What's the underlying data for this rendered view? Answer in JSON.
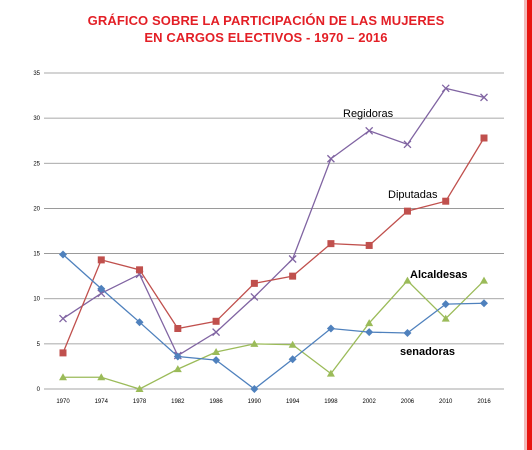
{
  "title_line1": "GRÁFICO SOBRE LA PARTICIPACIÓN DE LAS MUJERES",
  "title_line2": "EN CARGOS ELECTIVOS - 1970 – 2016",
  "chart_data": {
    "type": "line",
    "categories": [
      "1970",
      "1974",
      "1978",
      "1982",
      "1986",
      "1990",
      "1994",
      "1998",
      "2002",
      "2006",
      "2010",
      "2016"
    ],
    "ylim": [
      0,
      35
    ],
    "yticks": [
      0,
      5,
      10,
      15,
      20,
      25,
      30,
      35
    ],
    "grid": true,
    "series": [
      {
        "name": "Regidoras",
        "color": "#8064a2",
        "marker": "x",
        "values": [
          7.8,
          10.6,
          12.7,
          3.7,
          6.3,
          10.2,
          14.4,
          25.5,
          28.6,
          27.1,
          33.3,
          32.3
        ]
      },
      {
        "name": "Diputadas",
        "color": "#c0504d",
        "marker": "square",
        "values": [
          4.0,
          14.3,
          13.2,
          6.7,
          7.5,
          11.7,
          12.5,
          16.1,
          15.9,
          19.7,
          20.8,
          27.8
        ]
      },
      {
        "name": "Alcaldesas",
        "color": "#9bbb59",
        "marker": "triangle",
        "values": [
          1.3,
          1.3,
          0.0,
          2.2,
          4.1,
          5.0,
          4.9,
          1.7,
          7.3,
          12.0,
          7.8,
          12.0
        ]
      },
      {
        "name": "senadoras",
        "color": "#4f81bd",
        "marker": "diamond",
        "values": [
          14.9,
          11.1,
          7.4,
          3.6,
          3.2,
          0.0,
          3.3,
          6.7,
          6.3,
          6.2,
          9.4,
          9.5
        ]
      }
    ]
  }
}
